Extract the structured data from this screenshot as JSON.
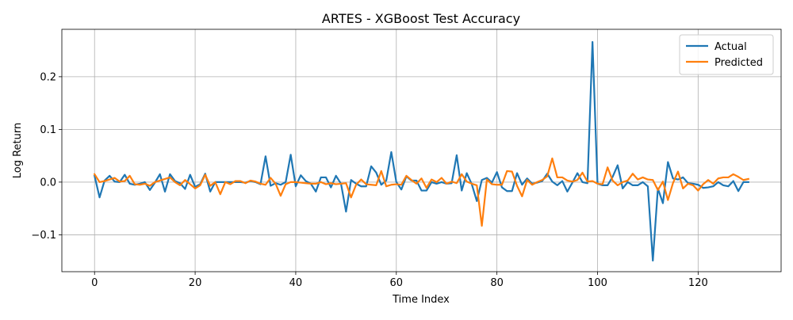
{
  "chart_data": {
    "type": "line",
    "title": "ARTES - XGBoost Test Accuracy",
    "xlabel": "Time Index",
    "ylabel": "Log Return",
    "xlim": [
      -6.5,
      136.5
    ],
    "ylim": [
      -0.17,
      0.29
    ],
    "xticks": [
      0,
      20,
      40,
      60,
      80,
      100,
      120
    ],
    "xtick_labels": [
      "0",
      "20",
      "40",
      "60",
      "80",
      "100",
      "120"
    ],
    "yticks": [
      -0.1,
      0.0,
      0.1,
      0.2
    ],
    "ytick_labels": [
      "−0.1",
      "0.0",
      "0.1",
      "0.2"
    ],
    "grid": true,
    "legend_position": "top-right",
    "series": [
      {
        "name": "Actual",
        "color": "#1f77b4",
        "values": [
          0.012,
          -0.029,
          0.003,
          0.012,
          0.001,
          0.0,
          0.014,
          -0.003,
          -0.005,
          -0.003,
          0.0,
          -0.015,
          -0.001,
          0.015,
          -0.018,
          0.015,
          0.002,
          -0.002,
          -0.013,
          0.014,
          -0.009,
          -0.004,
          0.016,
          -0.018,
          0.0,
          0.0,
          0.0,
          0.0,
          0.0,
          0.0,
          -0.001,
          0.002,
          0.0,
          -0.004,
          0.049,
          -0.007,
          -0.002,
          -0.005,
          0.0,
          0.052,
          -0.008,
          0.013,
          0.002,
          -0.003,
          -0.018,
          0.009,
          0.009,
          -0.01,
          0.012,
          -0.003,
          -0.056,
          0.004,
          -0.003,
          -0.008,
          -0.008,
          0.03,
          0.018,
          -0.005,
          0.003,
          0.057,
          0.0,
          -0.014,
          0.011,
          0.003,
          0.003,
          -0.016,
          -0.016,
          0.0,
          -0.003,
          0.0,
          -0.003,
          -0.002,
          0.051,
          -0.016,
          0.017,
          -0.004,
          -0.036,
          0.004,
          0.008,
          -0.001,
          0.019,
          -0.01,
          -0.017,
          -0.017,
          0.017,
          -0.005,
          0.007,
          -0.003,
          -0.001,
          0.002,
          0.016,
          0.001,
          -0.006,
          0.002,
          -0.018,
          -0.001,
          0.017,
          0.0,
          -0.002,
          0.266,
          -0.003,
          -0.006,
          -0.006,
          0.01,
          0.032,
          -0.012,
          0.0,
          -0.006,
          -0.006,
          0.0,
          -0.008,
          -0.149,
          -0.012,
          -0.04,
          0.038,
          0.007,
          0.005,
          0.009,
          -0.002,
          -0.003,
          -0.005,
          -0.011,
          -0.01,
          -0.008,
          0.0,
          -0.006,
          -0.008,
          0.002,
          -0.017,
          0.0,
          0.0
        ]
      },
      {
        "name": "Predicted",
        "color": "#ff7f0e",
        "values": [
          0.015,
          0.0,
          0.002,
          0.005,
          0.008,
          0.001,
          0.002,
          0.012,
          -0.004,
          -0.005,
          -0.003,
          -0.007,
          0.0,
          0.003,
          0.006,
          0.009,
          0.0,
          -0.006,
          0.004,
          -0.004,
          -0.012,
          -0.006,
          0.014,
          -0.007,
          0.0,
          -0.023,
          0.0,
          -0.004,
          0.002,
          0.002,
          -0.002,
          0.003,
          0.001,
          -0.003,
          -0.005,
          0.008,
          -0.003,
          -0.026,
          -0.004,
          0.0,
          0.0,
          -0.001,
          -0.002,
          -0.003,
          -0.003,
          0.0,
          -0.004,
          -0.002,
          -0.004,
          -0.003,
          -0.002,
          -0.029,
          -0.005,
          0.005,
          -0.004,
          -0.005,
          -0.006,
          0.021,
          -0.008,
          -0.005,
          -0.004,
          -0.005,
          0.012,
          0.004,
          -0.003,
          0.007,
          -0.011,
          0.005,
          0.0,
          0.008,
          -0.003,
          0.001,
          -0.002,
          0.015,
          0.001,
          -0.003,
          -0.006,
          -0.083,
          0.005,
          -0.004,
          -0.005,
          -0.005,
          0.021,
          0.02,
          -0.007,
          -0.027,
          0.004,
          -0.005,
          0.0,
          0.004,
          0.011,
          0.045,
          0.009,
          0.009,
          0.003,
          0.001,
          0.004,
          0.018,
          0.001,
          0.002,
          -0.003,
          -0.004,
          0.028,
          0.003,
          -0.006,
          0.0,
          0.003,
          0.016,
          0.005,
          0.009,
          0.005,
          0.004,
          -0.015,
          0.001,
          -0.034,
          -0.002,
          0.02,
          -0.012,
          -0.003,
          -0.006,
          -0.016,
          -0.004,
          0.004,
          -0.003,
          0.007,
          0.009,
          0.009,
          0.015,
          0.01,
          0.004,
          0.006
        ]
      }
    ]
  }
}
